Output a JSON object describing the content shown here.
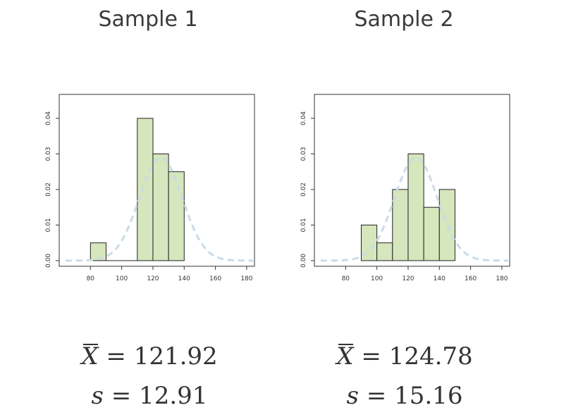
{
  "panels": [
    {
      "title": "Sample 1",
      "mean_symbol": "X",
      "mean_value": "121.92",
      "sd_symbol": "s",
      "sd_value": "12.91"
    },
    {
      "title": "Sample 2",
      "mean_symbol": "X",
      "mean_value": "124.78",
      "sd_symbol": "s",
      "sd_value": "15.16"
    }
  ],
  "equals": "=",
  "colors": {
    "bar_fill": "#d6e6bd",
    "bar_stroke": "#222222",
    "density_curve": "#c9dbe6",
    "frame": "#333333"
  },
  "chart_data": [
    {
      "type": "bar",
      "title": "Sample 1",
      "xlabel": "",
      "ylabel": "",
      "xlim": [
        60,
        185
      ],
      "ylim": [
        0,
        0.045
      ],
      "x_ticks": [
        80,
        100,
        120,
        140,
        160,
        180
      ],
      "y_ticks": [
        "0.00",
        "0.01",
        "0.02",
        "0.03",
        "0.04"
      ],
      "bins": [
        {
          "x0": 80,
          "x1": 90,
          "density": 0.005
        },
        {
          "x0": 90,
          "x1": 100,
          "density": 0
        },
        {
          "x0": 100,
          "x1": 110,
          "density": 0
        },
        {
          "x0": 110,
          "x1": 120,
          "density": 0.04
        },
        {
          "x0": 120,
          "x1": 130,
          "density": 0.03
        },
        {
          "x0": 130,
          "x1": 140,
          "density": 0.025
        }
      ],
      "density_curve": {
        "style": "dashed",
        "mean": 125,
        "sd": 13.8,
        "x_range": [
          64,
          184
        ]
      },
      "grid": false
    },
    {
      "type": "bar",
      "title": "Sample 2",
      "xlabel": "",
      "ylabel": "",
      "xlim": [
        60,
        185
      ],
      "ylim": [
        0,
        0.045
      ],
      "x_ticks": [
        80,
        100,
        120,
        140,
        160,
        180
      ],
      "y_ticks": [
        "0.00",
        "0.01",
        "0.02",
        "0.03",
        "0.04"
      ],
      "bins": [
        {
          "x0": 90,
          "x1": 100,
          "density": 0.01
        },
        {
          "x0": 100,
          "x1": 110,
          "density": 0.005
        },
        {
          "x0": 110,
          "x1": 120,
          "density": 0.02
        },
        {
          "x0": 120,
          "x1": 130,
          "density": 0.03
        },
        {
          "x0": 130,
          "x1": 140,
          "density": 0.015
        },
        {
          "x0": 140,
          "x1": 150,
          "density": 0.02
        }
      ],
      "density_curve": {
        "style": "dashed",
        "mean": 125,
        "sd": 13.8,
        "x_range": [
          64,
          184
        ]
      },
      "grid": false
    }
  ]
}
